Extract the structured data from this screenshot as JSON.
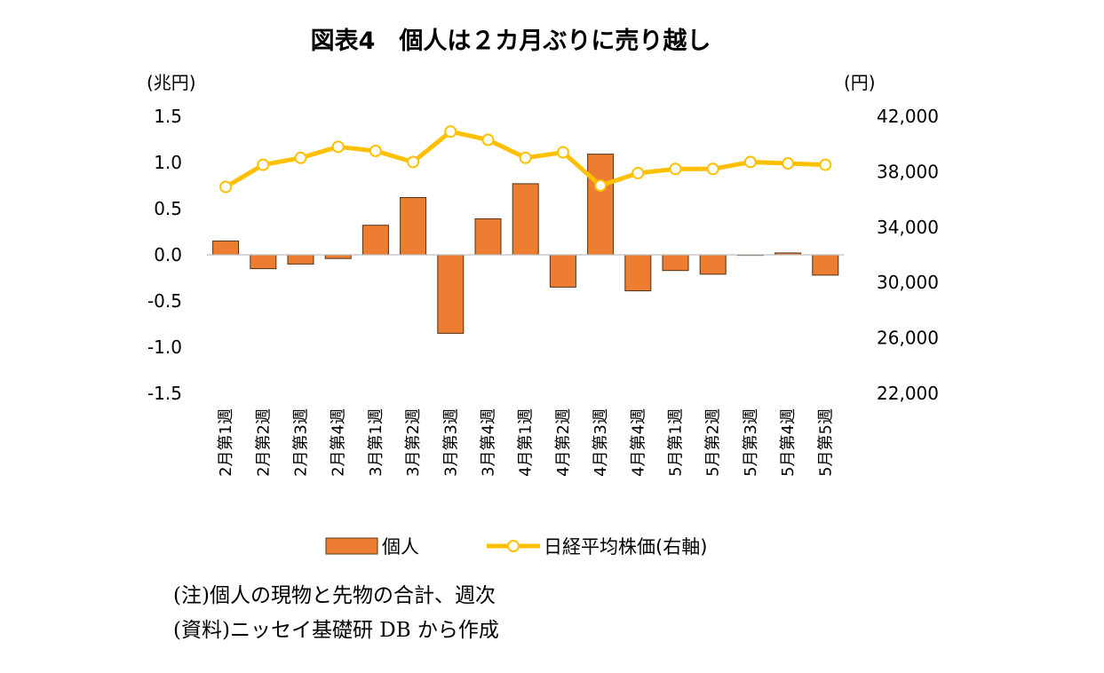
{
  "chart_data": {
    "type": "bar+line",
    "title": "図表4　個人は２カ月ぶりに売り越し",
    "categories": [
      "2月第1週",
      "2月第2週",
      "2月第3週",
      "2月第4週",
      "3月第1週",
      "3月第2週",
      "3月第3週",
      "3月第4週",
      "4月第1週",
      "4月第2週",
      "4月第3週",
      "4月第4週",
      "5月第1週",
      "5月第2週",
      "5月第3週",
      "5月第4週",
      "5月第5週"
    ],
    "y_left": {
      "unit_label": "(兆円)",
      "ticks": [
        "1.5",
        "1.0",
        "0.5",
        "0.0",
        "-0.5",
        "-1.0",
        "-1.5"
      ],
      "ylim": [
        -1.5,
        1.5
      ]
    },
    "y_right": {
      "unit_label": "(円)",
      "ticks": [
        "42,000",
        "38,000",
        "34,000",
        "30,000",
        "26,000",
        "22,000"
      ],
      "ylim": [
        22000,
        42000
      ]
    },
    "series": [
      {
        "name": "個人",
        "type": "bar",
        "axis": "left",
        "color": "#ed7d31",
        "values": [
          0.15,
          -0.15,
          -0.1,
          -0.04,
          0.32,
          0.62,
          -0.85,
          0.39,
          0.77,
          -0.35,
          1.09,
          -0.39,
          -0.17,
          -0.21,
          0.0,
          0.02,
          -0.22
        ]
      },
      {
        "name": "日経平均株価(右軸)",
        "type": "line",
        "axis": "right",
        "color": "#ffc000",
        "values": [
          36900,
          38500,
          39000,
          39800,
          39500,
          38700,
          40900,
          40300,
          39000,
          39400,
          37000,
          37900,
          38200,
          38200,
          38700,
          38600,
          38500
        ]
      }
    ],
    "legend_position": "bottom",
    "grid": false
  },
  "notes": {
    "line1": "(注)個人の現物と先物の合計、週次",
    "line2": "(資料)ニッセイ基礎研 DB から作成"
  }
}
